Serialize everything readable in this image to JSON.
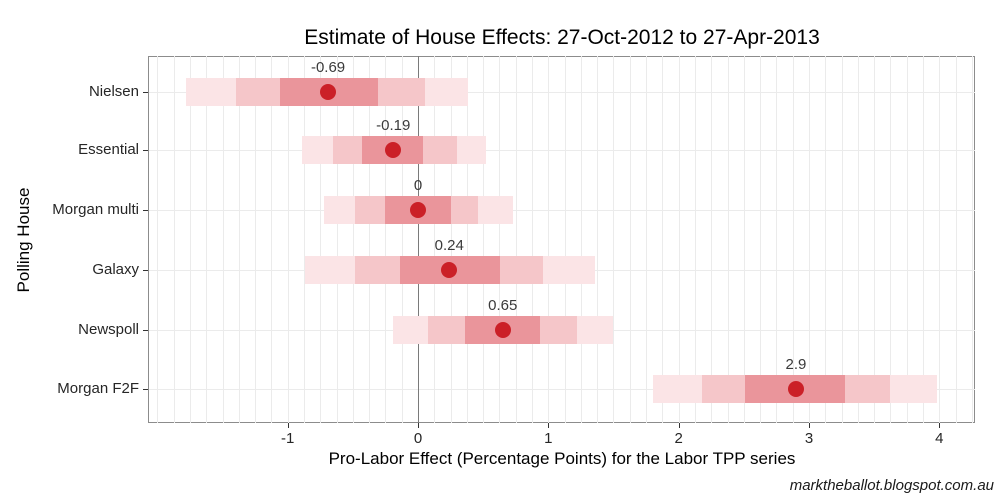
{
  "watermark": "marktheballot.blogspot.com.au",
  "chart_data": {
    "type": "scatter",
    "title": "Estimate of House Effects: 27-Oct-2012 to 27-Apr-2013",
    "xlabel": "Pro-Labor Effect (Percentage Points) for the Labor TPP series",
    "ylabel": "Polling House",
    "xlim": [
      -2.06,
      4.27
    ],
    "xticks": [
      -1,
      0,
      1,
      2,
      3,
      4
    ],
    "zero_reference_line": 0,
    "grid": "light vertical gridlines every 0.125 units; light horizontal gridline at each category row",
    "legend_position": "none",
    "categories": [
      "Nielsen",
      "Essential",
      "Morgan multi",
      "Galaxy",
      "Newspoll",
      "Morgan F2F"
    ],
    "points": [
      {
        "house": "Nielsen",
        "estimate": -0.69,
        "label": "-0.69",
        "dark_band": [
          -1.06,
          -0.31
        ],
        "medium_band": [
          -1.4,
          0.05
        ],
        "light_band": [
          -1.78,
          0.38
        ]
      },
      {
        "house": "Essential",
        "estimate": -0.19,
        "label": "-0.19",
        "dark_band": [
          -0.43,
          0.04
        ],
        "medium_band": [
          -0.65,
          0.3
        ],
        "light_band": [
          -0.89,
          0.52
        ]
      },
      {
        "house": "Morgan multi",
        "estimate": 0,
        "label": "0",
        "dark_band": [
          -0.25,
          0.25
        ],
        "medium_band": [
          -0.48,
          0.46
        ],
        "light_band": [
          -0.72,
          0.73
        ]
      },
      {
        "house": "Galaxy",
        "estimate": 0.24,
        "label": "0.24",
        "dark_band": [
          -0.14,
          0.63
        ],
        "medium_band": [
          -0.48,
          0.96
        ],
        "light_band": [
          -0.87,
          1.36
        ]
      },
      {
        "house": "Newspoll",
        "estimate": 0.65,
        "label": "0.65",
        "dark_band": [
          0.36,
          0.94
        ],
        "medium_band": [
          0.08,
          1.22
        ],
        "light_band": [
          -0.19,
          1.5
        ]
      },
      {
        "house": "Morgan F2F",
        "estimate": 2.9,
        "label": "2.9",
        "dark_band": [
          2.51,
          3.28
        ],
        "medium_band": [
          2.18,
          3.62
        ],
        "light_band": [
          1.8,
          3.98
        ]
      }
    ],
    "colors": {
      "point": "#cb2027",
      "band_dark": "#ea959b",
      "band_medium": "#f5c6c9",
      "band_light": "#fbe4e6",
      "zero_line": "#7a7a7a",
      "gridline": "#ebebeb",
      "panel_border": "#8c8c8c"
    }
  }
}
